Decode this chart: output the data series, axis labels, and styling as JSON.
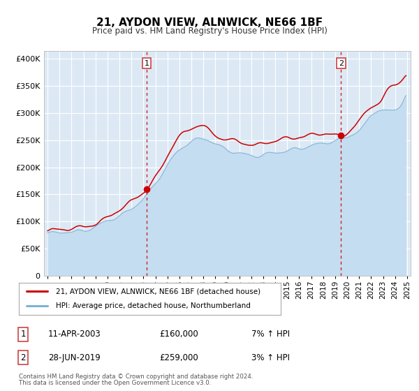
{
  "title": "21, AYDON VIEW, ALNWICK, NE66 1BF",
  "subtitle": "Price paid vs. HM Land Registry's House Price Index (HPI)",
  "legend_label_red": "21, AYDON VIEW, ALNWICK, NE66 1BF (detached house)",
  "legend_label_blue": "HPI: Average price, detached house, Northumberland",
  "transaction1_date": "11-APR-2003",
  "transaction1_price": 160000,
  "transaction1_label": "7% ↑ HPI",
  "transaction1_year": 2003.28,
  "transaction2_date": "28-JUN-2019",
  "transaction2_price": 259000,
  "transaction2_label": "3% ↑ HPI",
  "transaction2_year": 2019.49,
  "note_line1": "Contains HM Land Registry data © Crown copyright and database right 2024.",
  "note_line2": "This data is licensed under the Open Government Licence v3.0.",
  "background_color": "#dce9f5",
  "red_color": "#cc0000",
  "blue_color": "#7fb3d3",
  "blue_fill_color": "#c5ddf0"
}
